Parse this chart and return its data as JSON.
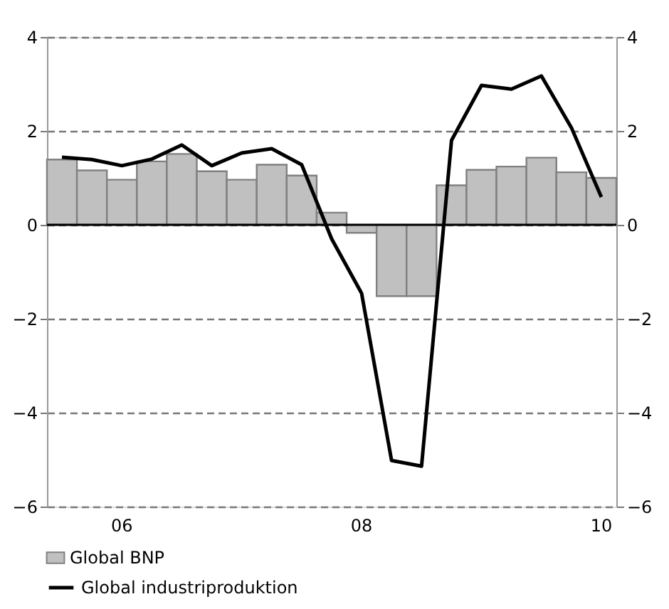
{
  "chart_data": {
    "type": "bar",
    "categories": [
      null,
      null,
      "06",
      null,
      null,
      null,
      null,
      null,
      null,
      null,
      "08",
      null,
      null,
      null,
      null,
      null,
      null,
      null,
      "10"
    ],
    "series": [
      {
        "name": "Global BNP",
        "color": "#c0c0c0",
        "values": [
          1.39,
          1.16,
          0.96,
          1.35,
          1.51,
          1.14,
          0.96,
          1.28,
          1.05,
          0.26,
          -0.17,
          -1.52,
          -1.52,
          0.84,
          1.17,
          1.24,
          1.43,
          1.12,
          1.0
        ]
      },
      {
        "name": "Global industriproduktion",
        "type": "line",
        "color": "#000000",
        "values": [
          1.44,
          1.39,
          1.26,
          1.4,
          1.7,
          1.26,
          1.53,
          1.62,
          1.28,
          -0.3,
          -1.46,
          -5.02,
          -5.14,
          1.8,
          2.97,
          2.89,
          3.17,
          2.07,
          0.59
        ]
      }
    ],
    "ylim": [
      -6,
      4
    ],
    "yticks": [
      -6,
      -4,
      -2,
      0,
      2,
      4
    ],
    "y2lim": [
      -6,
      4
    ],
    "y2ticks": [
      -6,
      -4,
      -2,
      0,
      2,
      4
    ],
    "ref_lines": [
      {
        "axis": "y",
        "value": 0,
        "label": null,
        "color": "#000000",
        "line_style": "solid"
      }
    ],
    "grid": "y",
    "legend": "bottom left",
    "line_style": "solid",
    "marker": "none"
  }
}
